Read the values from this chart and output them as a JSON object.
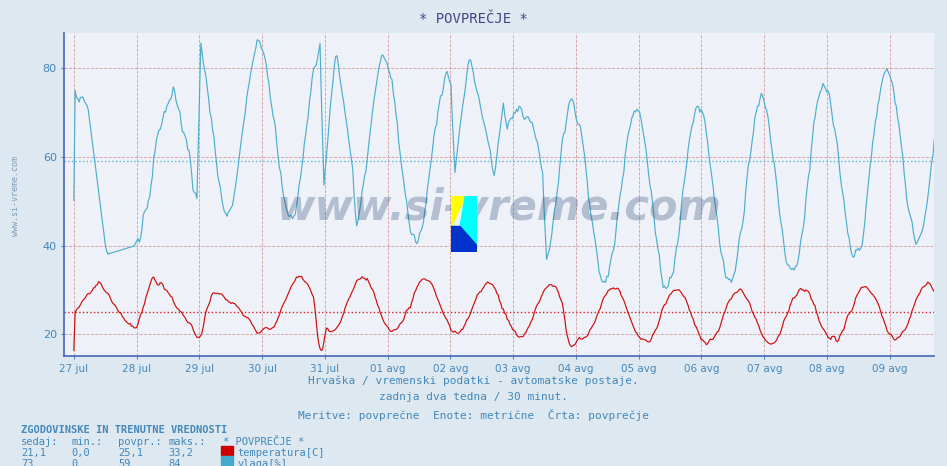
{
  "title": "* POVPREČJE *",
  "bg_color": "#dde8f0",
  "plot_bg_color": "#eef2f8",
  "title_color": "#444488",
  "label_color": "#4488bb",
  "x_labels": [
    "27 jul",
    "28 jul",
    "29 jul",
    "30 jul",
    "31 jul",
    "01 avg",
    "02 avg",
    "03 avg",
    "04 avg",
    "05 avg",
    "06 avg",
    "07 avg",
    "08 avg",
    "09 avg"
  ],
  "y_ticks": [
    20,
    40,
    60,
    80
  ],
  "y_min": 15,
  "y_max": 88,
  "temp_color": "#cc0000",
  "vlaga_color": "#44aacc",
  "temp_mean": 25.1,
  "vlaga_mean": 59,
  "subtitle1": "Hrvaška / vremenski podatki - avtomatske postaje.",
  "subtitle2": "zadnja dva tedna / 30 minut.",
  "subtitle3": "Meritve: povprečne  Enote: metrične  Črta: povprečje",
  "footer_title": "ZGODOVINSKE IN TRENUTNE VREDNOSTI",
  "col_headers": [
    "sedaj:",
    "min.:",
    "povpr.:",
    "maks.:"
  ],
  "temp_row": [
    "21,1",
    "0,0",
    "25,1",
    "33,2"
  ],
  "vlaga_row": [
    "73",
    "0",
    "59",
    "84"
  ],
  "legend_temp": "temperatura[C]",
  "legend_vlaga": "vlaga[%]",
  "legend_title": "* POVPREČJE *",
  "watermark": "www.si-vreme.com",
  "watermark_color": "#1a3a6a",
  "watermark_alpha": 0.28,
  "num_points": 672
}
